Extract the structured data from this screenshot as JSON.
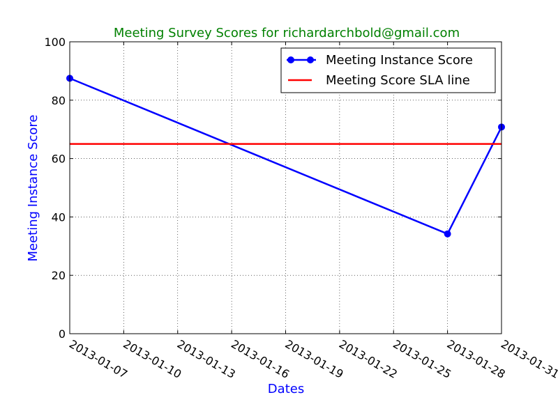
{
  "chart_data": {
    "type": "line",
    "title": "Meeting Survey Scores for richardarchbold@gmail.com",
    "xlabel": "Dates",
    "ylabel": "Meeting Instance Score",
    "ylim": [
      0,
      100
    ],
    "y_ticks": [
      "0",
      "20",
      "40",
      "60",
      "80",
      "100"
    ],
    "xlim": [
      "2013-01-07",
      "2013-01-31"
    ],
    "x_ticks": [
      "2013-01-07",
      "2013-01-10",
      "2013-01-13",
      "2013-01-16",
      "2013-01-19",
      "2013-01-22",
      "2013-01-25",
      "2013-01-28",
      "2013-01-31"
    ],
    "grid": true,
    "legend_position": "top-right",
    "series": [
      {
        "name": "Meeting Instance Score",
        "color": "#0000ff",
        "marker": "circle",
        "points": [
          {
            "x": "2013-01-07",
            "y": 87.5
          },
          {
            "x": "2013-01-28",
            "y": 34.2
          },
          {
            "x": "2013-01-31",
            "y": 70.8
          }
        ]
      },
      {
        "name": "Meeting Score SLA line",
        "color": "#ff0000",
        "type": "hline",
        "y": 65
      }
    ]
  }
}
